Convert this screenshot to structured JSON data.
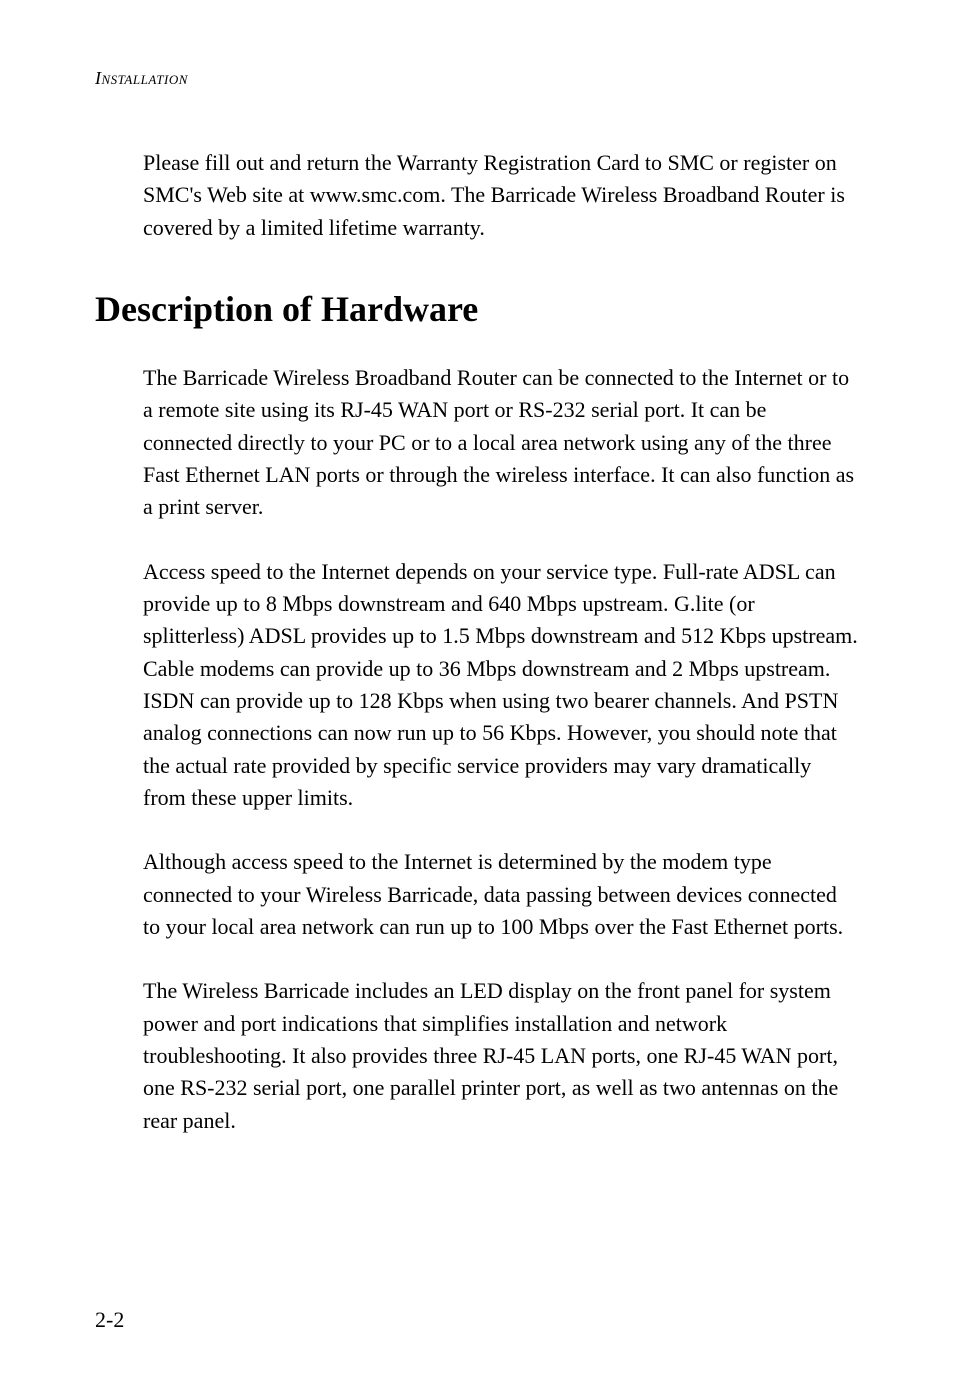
{
  "header": {
    "running": "Installation"
  },
  "paragraphs": {
    "intro": "Please fill out and return the Warranty Registration Card to SMC or register on SMC's Web site at www.smc.com. The Barricade Wireless Broadband Router is covered by a limited lifetime warranty.",
    "heading": "Description of Hardware",
    "p1": "The Barricade Wireless Broadband Router can be connected to the Internet or to a remote site using its RJ-45 WAN port or RS-232 serial port. It can be connected directly to your PC or to a local area network using any of the three Fast Ethernet LAN ports or through the wireless interface. It can also function as a print server.",
    "p2": "Access speed to the Internet depends on your service type. Full-rate ADSL can provide up to 8 Mbps downstream and 640 Mbps upstream. G.lite (or splitterless) ADSL provides up to 1.5 Mbps downstream and 512 Kbps upstream. Cable modems can provide up to 36 Mbps downstream and 2 Mbps upstream. ISDN can provide up to 128 Kbps when using two bearer channels. And PSTN analog connections can now run up to 56 Kbps. However, you should note that the actual rate provided by specific service providers may vary dramatically from these upper limits.",
    "p3": "Although access speed to the Internet is determined by the modem type connected to your Wireless Barricade, data passing between devices connected to your local area network can run up to 100 Mbps over the Fast Ethernet ports.",
    "p4": "The Wireless Barricade includes an LED display on the front panel for system power and port indications that simplifies installation and network troubleshooting. It also provides three RJ-45 LAN ports, one RJ-45 WAN port, one RS-232 serial port, one parallel printer port, as well as two antennas on the rear panel."
  },
  "pageNumber": "2-2",
  "styles": {
    "body_fontsize": 22,
    "heading_fontsize": 36,
    "header_fontsize": 18,
    "pagenum_fontsize": 22,
    "text_color": "#000000",
    "background_color": "#ffffff",
    "body_indent": 48,
    "line_height": 1.47
  }
}
